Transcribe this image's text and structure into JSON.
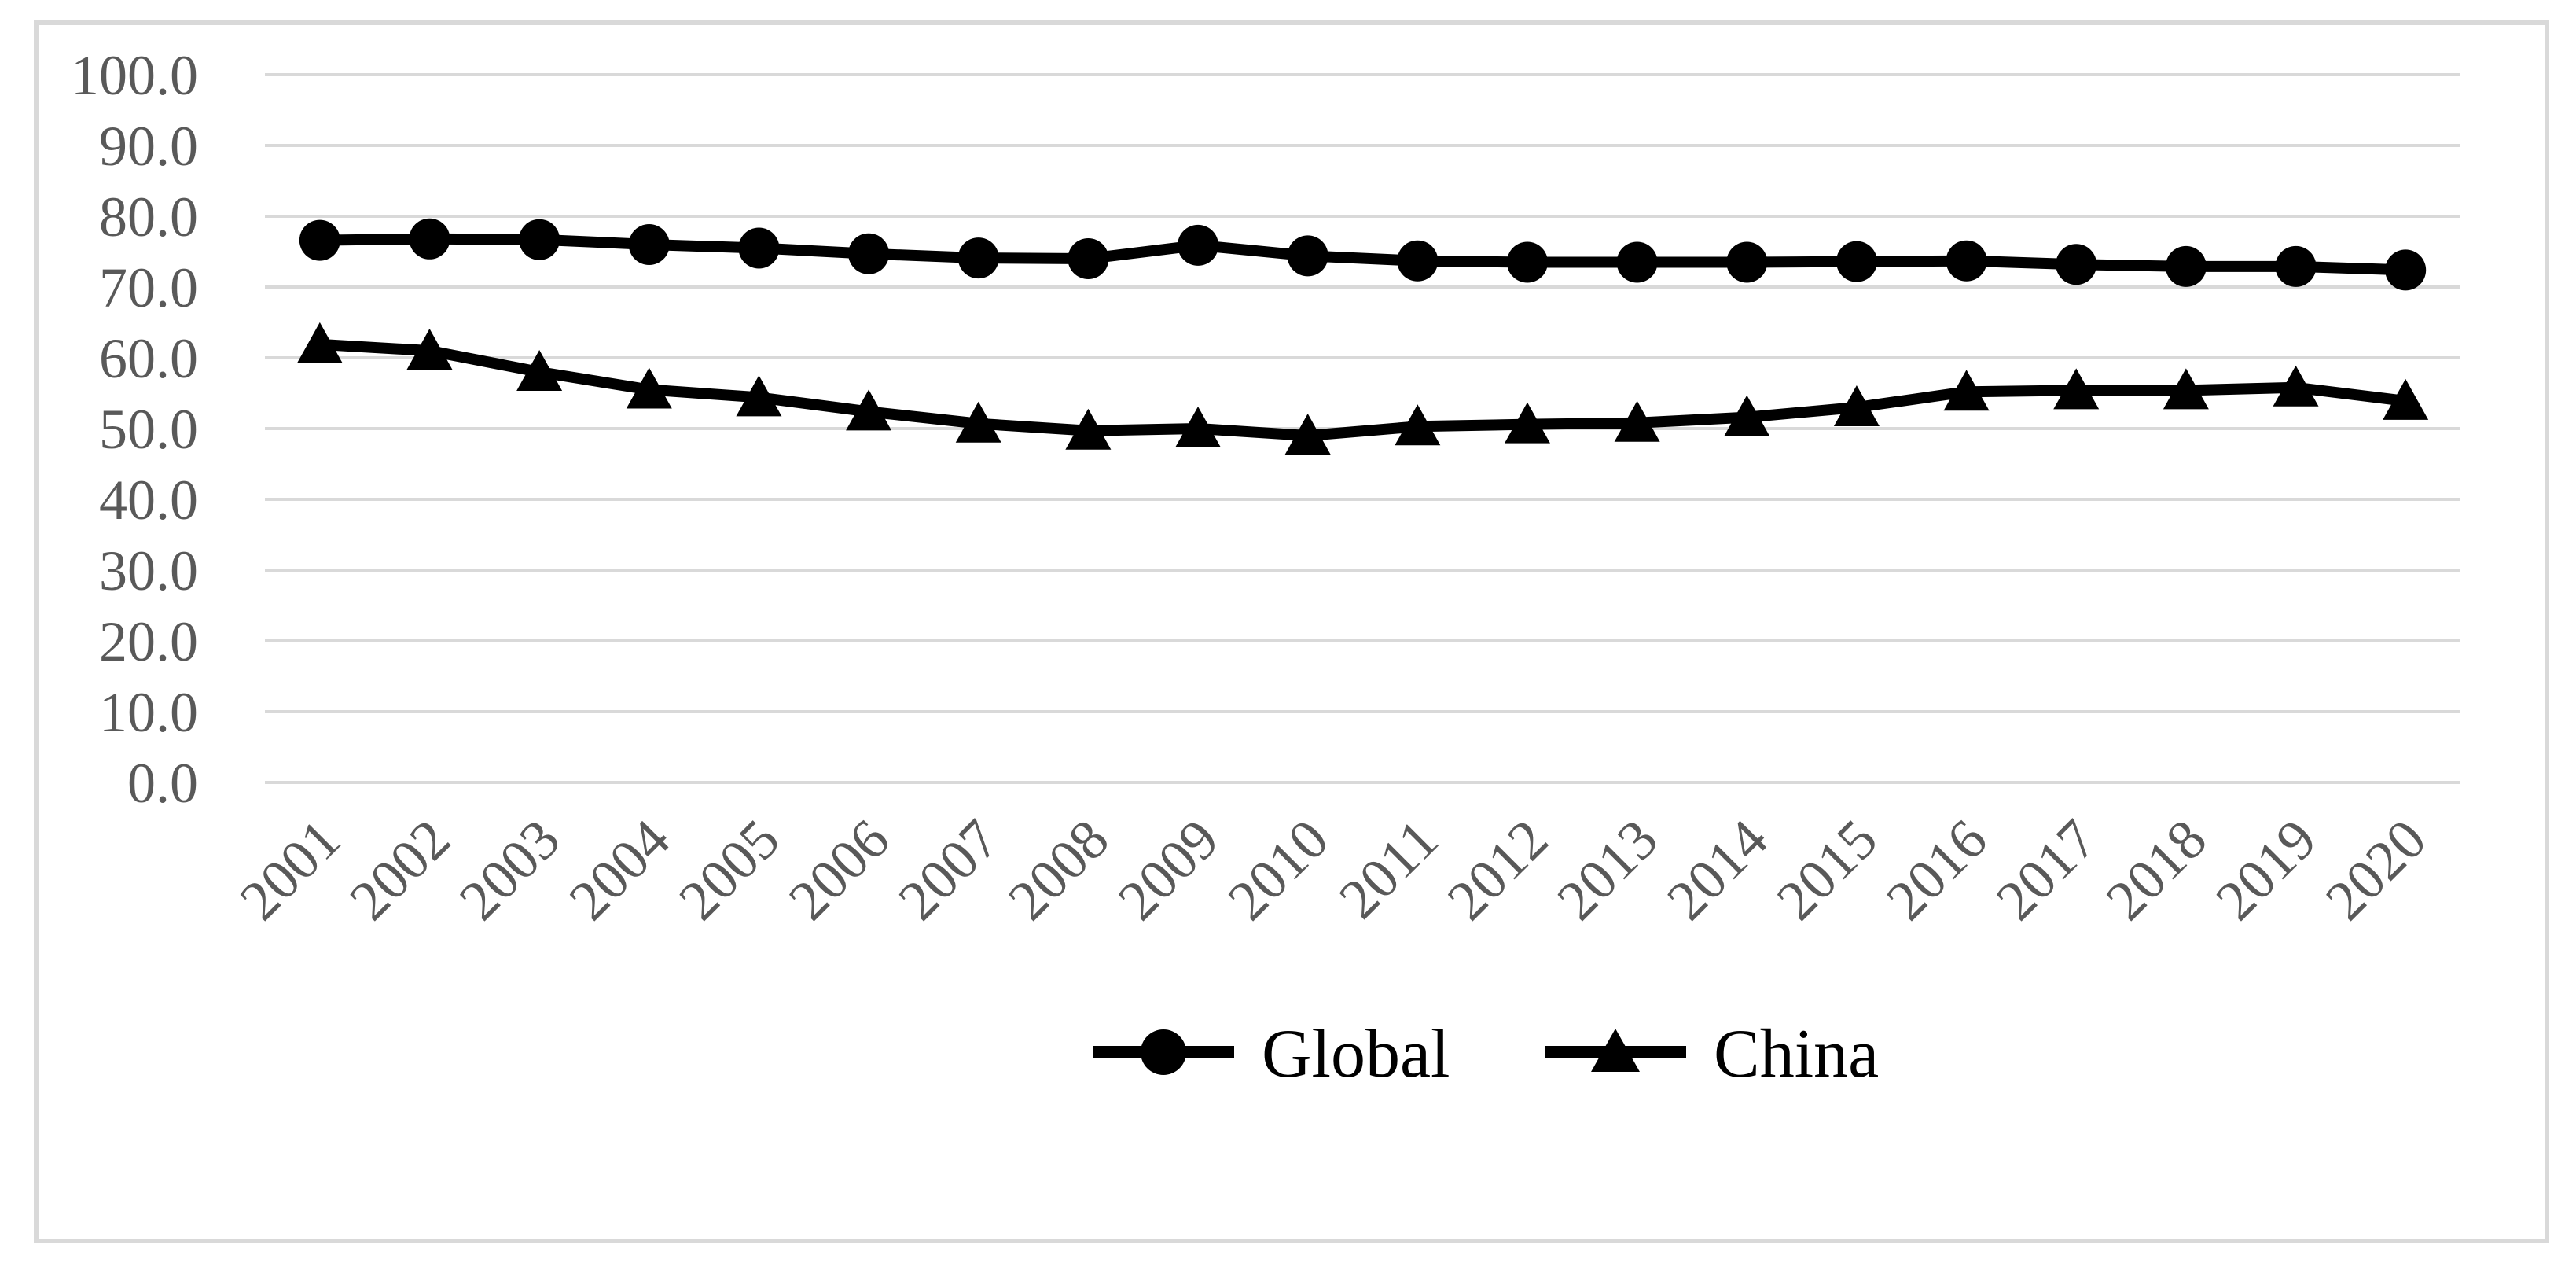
{
  "chart_data": {
    "type": "line",
    "title": "",
    "xlabel": "",
    "ylabel": "",
    "categories": [
      "2001",
      "2002",
      "2003",
      "2004",
      "2005",
      "2006",
      "2007",
      "2008",
      "2009",
      "2010",
      "2011",
      "2012",
      "2013",
      "2014",
      "2015",
      "2016",
      "2017",
      "2018",
      "2019",
      "2020"
    ],
    "series": [
      {
        "name": "Global",
        "marker": "circle",
        "values": [
          76.6,
          76.8,
          76.7,
          76.0,
          75.5,
          74.7,
          74.1,
          74.0,
          75.9,
          74.4,
          73.7,
          73.5,
          73.5,
          73.5,
          73.6,
          73.7,
          73.2,
          72.9,
          72.9,
          72.4
        ]
      },
      {
        "name": "China",
        "marker": "triangle",
        "values": [
          61.9,
          61.0,
          58.0,
          55.5,
          54.4,
          52.4,
          50.7,
          49.7,
          50.0,
          49.0,
          50.3,
          50.6,
          50.8,
          51.6,
          53.0,
          55.2,
          55.4,
          55.4,
          55.8,
          53.9
        ]
      }
    ],
    "ylim": [
      0,
      100
    ],
    "ytick_step": 10,
    "ytick_labels": [
      "0.0",
      "10.0",
      "20.0",
      "30.0",
      "40.0",
      "50.0",
      "60.0",
      "70.0",
      "80.0",
      "90.0",
      "100.0"
    ],
    "x_tick_rotation_deg": 45,
    "grid": true,
    "legend_position": "bottom-center",
    "colors": {
      "series_line": "#000000",
      "gridline": "#d9d9d9",
      "frame_border": "#d9d9d9",
      "axis_label_text": "#595959",
      "legend_text": "#000000",
      "background": "#ffffff"
    }
  }
}
